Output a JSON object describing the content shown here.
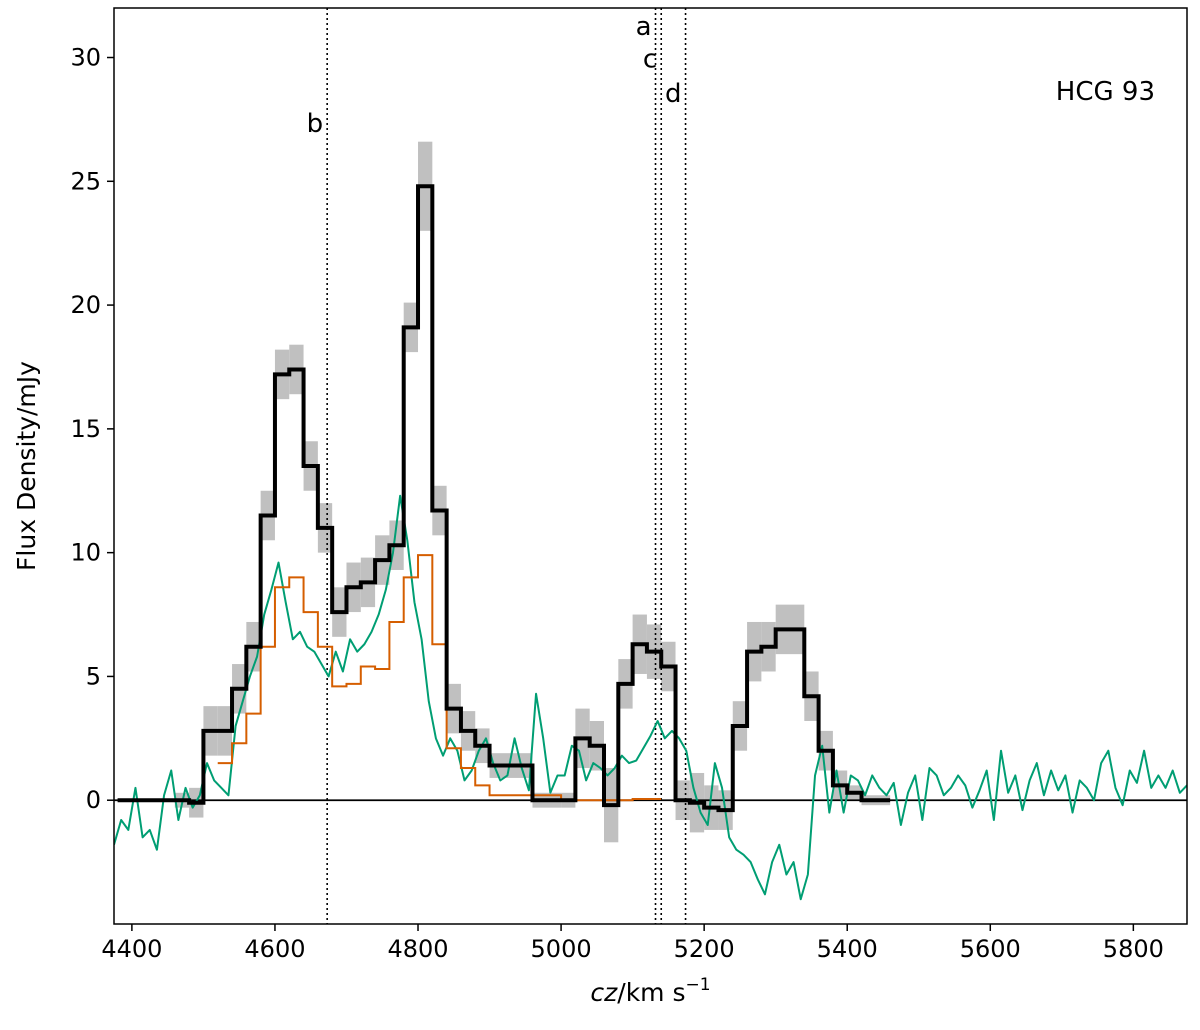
{
  "chart_data": {
    "type": "line",
    "title": "",
    "annotation": "HCG 93",
    "xlabel_prefix": "cz",
    "xlabel_units": "/km s",
    "xlabel_exponent": "−1",
    "ylabel": "Flux Density/mJy",
    "xlim": [
      4375,
      5875
    ],
    "ylim": [
      -5,
      32
    ],
    "xticks": [
      4400,
      4600,
      4800,
      5000,
      5200,
      5400,
      5600,
      5800
    ],
    "yticks": [
      0,
      5,
      10,
      15,
      20,
      25,
      30
    ],
    "grid": false,
    "legend": "none",
    "colors": {
      "black": "#000000",
      "orange": "#d55e00",
      "green": "#009e73",
      "band": "#c0c0c0"
    },
    "vlines": [
      {
        "label": "b",
        "x": 4673,
        "label_y": 27.0
      },
      {
        "label": "a",
        "x": 5132,
        "label_y": 30.9
      },
      {
        "label": "c",
        "x": 5140,
        "label_y": 29.6
      },
      {
        "label": "d",
        "x": 5174,
        "label_y": 28.2
      }
    ],
    "series": [
      {
        "style": "step-black",
        "x": [
          4380,
          4460,
          4480,
          4500,
          4520,
          4540,
          4560,
          4580,
          4600,
          4620,
          4640,
          4660,
          4680,
          4700,
          4720,
          4740,
          4760,
          4780,
          4800,
          4820,
          4840,
          4860,
          4880,
          4900,
          4960,
          5000,
          5020,
          5040,
          5060,
          5080,
          5100,
          5120,
          5140,
          5160,
          5180,
          5200,
          5220,
          5240,
          5260,
          5280,
          5300,
          5320,
          5340,
          5360,
          5380,
          5400,
          5420,
          5460
        ],
        "y": [
          0.0,
          0.0,
          -0.1,
          2.8,
          2.8,
          4.5,
          6.2,
          11.5,
          17.2,
          17.4,
          13.5,
          11.0,
          7.6,
          8.6,
          8.8,
          9.7,
          10.3,
          19.1,
          24.8,
          11.7,
          3.7,
          2.8,
          2.2,
          1.4,
          0.0,
          0.0,
          2.5,
          2.2,
          -0.2,
          4.7,
          6.3,
          6.0,
          5.4,
          0.0,
          -0.1,
          -0.3,
          -0.4,
          3.0,
          6.0,
          6.2,
          6.9,
          6.9,
          4.2,
          2.0,
          0.6,
          0.3,
          0.0,
          0.0
        ],
        "err": [
          0.0,
          0.3,
          0.6,
          1.0,
          1.0,
          1.0,
          1.0,
          1.0,
          1.0,
          1.0,
          1.0,
          1.0,
          1.0,
          1.0,
          1.0,
          1.0,
          1.0,
          1.0,
          1.8,
          1.0,
          1.0,
          0.8,
          0.7,
          0.5,
          0.3,
          0.3,
          1.2,
          1.0,
          1.5,
          1.0,
          1.2,
          1.1,
          1.0,
          0.8,
          1.2,
          0.9,
          0.8,
          1.0,
          1.2,
          1.0,
          1.0,
          1.0,
          1.0,
          0.8,
          0.6,
          0.3,
          0.2,
          0.0
        ]
      },
      {
        "style": "step-orange",
        "x": [
          4520,
          4540,
          4560,
          4580,
          4600,
          4620,
          4640,
          4660,
          4680,
          4700,
          4720,
          4740,
          4760,
          4780,
          4800,
          4820,
          4840,
          4860,
          4880,
          4900,
          5000,
          5100,
          5140
        ],
        "y": [
          1.5,
          2.3,
          3.5,
          6.2,
          8.6,
          9.0,
          7.6,
          6.2,
          4.6,
          4.7,
          5.4,
          5.3,
          7.2,
          9.0,
          9.9,
          6.3,
          2.1,
          1.3,
          0.6,
          0.2,
          0.0,
          0.05,
          0.05
        ]
      },
      {
        "style": "line-green",
        "x": [
          4375,
          4385,
          4395,
          4405,
          4415,
          4425,
          4435,
          4445,
          4455,
          4465,
          4475,
          4485,
          4495,
          4505,
          4515,
          4525,
          4535,
          4545,
          4555,
          4565,
          4575,
          4585,
          4595,
          4605,
          4615,
          4625,
          4635,
          4645,
          4655,
          4665,
          4675,
          4685,
          4695,
          4705,
          4715,
          4725,
          4735,
          4745,
          4755,
          4765,
          4775,
          4785,
          4795,
          4805,
          4815,
          4825,
          4835,
          4845,
          4855,
          4865,
          4875,
          4885,
          4895,
          4905,
          4915,
          4925,
          4935,
          4945,
          4955,
          4965,
          4975,
          4985,
          4995,
          5005,
          5015,
          5025,
          5035,
          5045,
          5055,
          5065,
          5075,
          5085,
          5095,
          5105,
          5115,
          5125,
          5135,
          5145,
          5155,
          5165,
          5175,
          5185,
          5195,
          5205,
          5215,
          5225,
          5235,
          5245,
          5255,
          5265,
          5275,
          5285,
          5295,
          5305,
          5315,
          5325,
          5335,
          5345,
          5355,
          5365,
          5375,
          5385,
          5395,
          5405,
          5415,
          5425,
          5435,
          5445,
          5455,
          5465,
          5475,
          5485,
          5495,
          5505,
          5515,
          5525,
          5535,
          5545,
          5555,
          5565,
          5575,
          5585,
          5595,
          5605,
          5615,
          5625,
          5635,
          5645,
          5655,
          5665,
          5675,
          5685,
          5695,
          5705,
          5715,
          5725,
          5735,
          5745,
          5755,
          5765,
          5775,
          5785,
          5795,
          5805,
          5815,
          5825,
          5835,
          5845,
          5855,
          5865,
          5875
        ],
        "y": [
          -1.8,
          -0.8,
          -1.2,
          0.5,
          -1.5,
          -1.2,
          -2.0,
          0.2,
          1.2,
          -0.8,
          0.5,
          -0.3,
          0.2,
          1.5,
          0.8,
          0.5,
          0.2,
          3.0,
          4.0,
          5.0,
          5.8,
          7.5,
          8.5,
          9.6,
          8.0,
          6.5,
          6.8,
          6.2,
          6.0,
          5.5,
          5.0,
          6.0,
          5.2,
          6.5,
          6.0,
          6.3,
          6.8,
          7.5,
          8.5,
          10.0,
          12.3,
          10.5,
          8.0,
          6.5,
          4.0,
          2.5,
          1.8,
          2.5,
          2.0,
          0.8,
          1.2,
          2.0,
          2.5,
          1.5,
          0.8,
          1.0,
          2.5,
          1.3,
          0.4,
          4.3,
          2.5,
          0.3,
          1.0,
          1.0,
          2.2,
          2.0,
          0.8,
          1.5,
          1.3,
          1.0,
          1.3,
          1.8,
          1.5,
          1.6,
          2.1,
          2.6,
          3.2,
          2.5,
          2.8,
          2.5,
          2.0,
          0.5,
          -0.5,
          -1.0,
          1.5,
          0.5,
          -1.5,
          -2.0,
          -2.2,
          -2.5,
          -3.2,
          -3.8,
          -2.5,
          -1.8,
          -3.0,
          -2.5,
          -4.0,
          -3.0,
          1.0,
          2.2,
          -0.5,
          1.2,
          -0.5,
          1.0,
          0.8,
          0.2,
          1.0,
          0.5,
          0.2,
          0.7,
          -1.0,
          0.3,
          1.0,
          -0.8,
          1.3,
          1.0,
          0.2,
          0.5,
          1.0,
          0.6,
          -0.3,
          0.4,
          1.2,
          -0.8,
          2.0,
          0.3,
          1.0,
          -0.4,
          0.8,
          1.5,
          0.2,
          1.2,
          0.4,
          1.0,
          -0.5,
          0.8,
          0.5,
          0.0,
          1.5,
          2.0,
          0.5,
          -0.2,
          1.2,
          0.7,
          2.0,
          0.5,
          1.0,
          0.5,
          1.2,
          0.3,
          0.6
        ]
      }
    ]
  }
}
